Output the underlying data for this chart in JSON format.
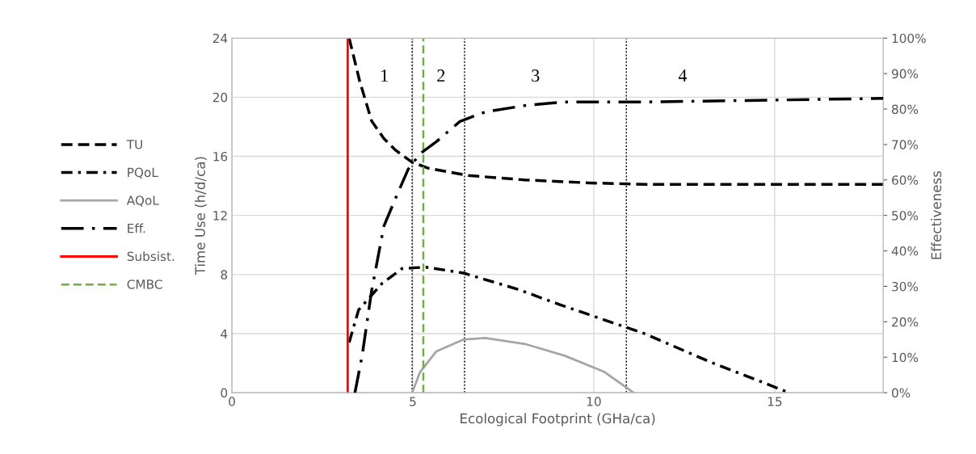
{
  "chart_data": {
    "type": "line",
    "xlabel": "Ecological Footprint (GHa/ca)",
    "ylabel": "Time Use (h/d/ca)",
    "y2label": "Effectiveness",
    "xlim": [
      0,
      18
    ],
    "xticks": [
      0,
      5,
      10,
      15
    ],
    "ylim": [
      0,
      24
    ],
    "yticks": [
      0,
      4,
      8,
      12,
      16,
      20,
      24
    ],
    "y2lim": [
      0,
      100
    ],
    "y2ticks": [
      {
        "value": 0,
        "label": "0%"
      },
      {
        "value": 10,
        "label": "10%"
      },
      {
        "value": 20,
        "label": "20%"
      },
      {
        "value": 30,
        "label": "30%"
      },
      {
        "value": 40,
        "label": "40%"
      },
      {
        "value": 50,
        "label": "50%"
      },
      {
        "value": 60,
        "label": "60%"
      },
      {
        "value": 70,
        "label": "70%"
      },
      {
        "value": 80,
        "label": "80%"
      },
      {
        "value": 90,
        "label": "90%"
      },
      {
        "value": 100,
        "label": "100%"
      }
    ],
    "grid": true,
    "legend": "left",
    "marker": "none",
    "series": [
      {
        "name": "TU",
        "color": "#000000",
        "line_style": "dashed",
        "x": [
          3.24,
          3.53,
          3.86,
          4.2,
          4.53,
          4.98,
          5.42,
          6.54,
          8.1,
          9.9,
          11.45,
          18
        ],
        "values": [
          24,
          21.1,
          18.4,
          17.2,
          16.4,
          15.6,
          15.2,
          14.7,
          14.4,
          14.2,
          14.1,
          14.1
        ]
      },
      {
        "name": "PQoL",
        "color": "#000000",
        "line_style": "dashdot",
        "x": [
          3.24,
          3.5,
          4.15,
          4.7,
          5.36,
          6.4,
          7.9,
          9.06,
          11.4,
          13.2,
          15.4
        ],
        "values": [
          3.4,
          5.6,
          7.4,
          8.4,
          8.5,
          8.1,
          7.0,
          5.96,
          4.0,
          2.1,
          0
        ]
      },
      {
        "name": "AQoL",
        "color": "#a6a6a6",
        "line_style": "solid",
        "x": [
          4.98,
          5.2,
          5.65,
          6.4,
          7.0,
          8.1,
          9.2,
          10.3,
          11.1
        ],
        "values": [
          0,
          1.4,
          2.8,
          3.6,
          3.7,
          3.3,
          2.5,
          1.4,
          0
        ]
      },
      {
        "name": "Eff.",
        "color": "#000000",
        "line_style": "longdashdot",
        "axis": "y2",
        "x": [
          3.4,
          3.6,
          3.86,
          4.2,
          4.53,
          4.87,
          5.2,
          5.65,
          6.3,
          7.0,
          8.1,
          9.2,
          11.45,
          18
        ],
        "values": [
          0,
          10.5,
          28.7,
          47,
          55,
          63,
          67.4,
          70.8,
          76.5,
          79.2,
          81,
          82,
          82,
          83
        ]
      },
      {
        "name": "Subsist.",
        "color": "#ff0000",
        "line_style": "solid",
        "x": [
          3.2,
          3.2
        ],
        "values": [
          0,
          24
        ]
      },
      {
        "name": "CMBC",
        "color": "#70ad47",
        "line_style": "dashed",
        "x": [
          5.29,
          5.29
        ],
        "values": [
          0,
          24
        ]
      }
    ],
    "ref_lines": [
      {
        "axis": "x",
        "value": 4.98,
        "color": "#000000",
        "line_style": "dotted"
      },
      {
        "axis": "x",
        "value": 6.43,
        "color": "#000000",
        "line_style": "dotted"
      },
      {
        "axis": "x",
        "value": 10.9,
        "color": "#000000",
        "line_style": "dotted"
      }
    ],
    "annotations": [
      "1",
      "2",
      "3",
      "4"
    ]
  }
}
